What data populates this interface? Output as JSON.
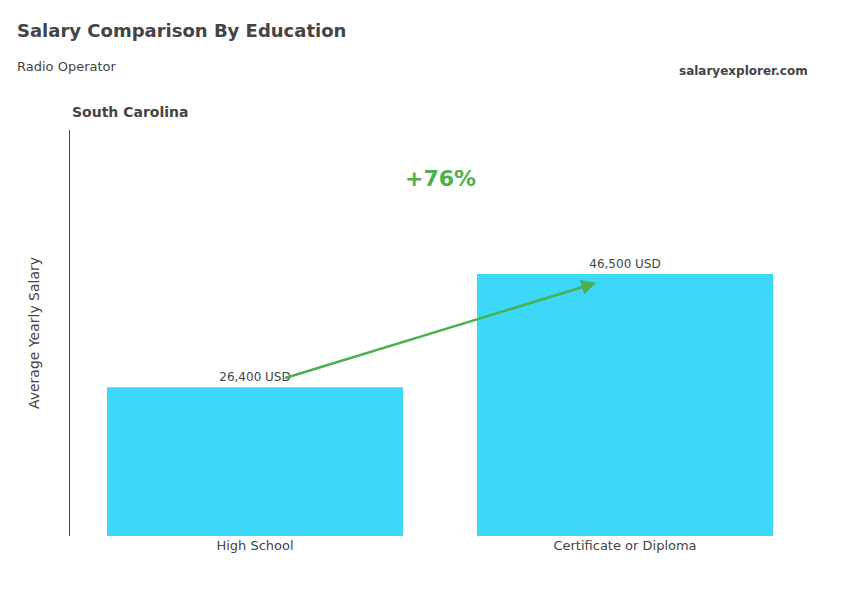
{
  "chart_data": {
    "type": "bar",
    "title": "Salary Comparison By Education",
    "subtitle": "Radio Operator",
    "ylabel": "Average Yearly Salary",
    "annotations": [
      "South Carolina",
      "salaryexplorer.com",
      "+76%"
    ],
    "categories": [
      "High School",
      "Certificate or Diploma"
    ],
    "values": [
      26400,
      46500
    ],
    "value_labels": [
      "26,400 USD",
      "46,500 USD"
    ],
    "data_labels": true,
    "color": "#3dd8f8",
    "ylim": [
      0,
      72075
    ],
    "tick_labels": "x",
    "grid": false
  }
}
